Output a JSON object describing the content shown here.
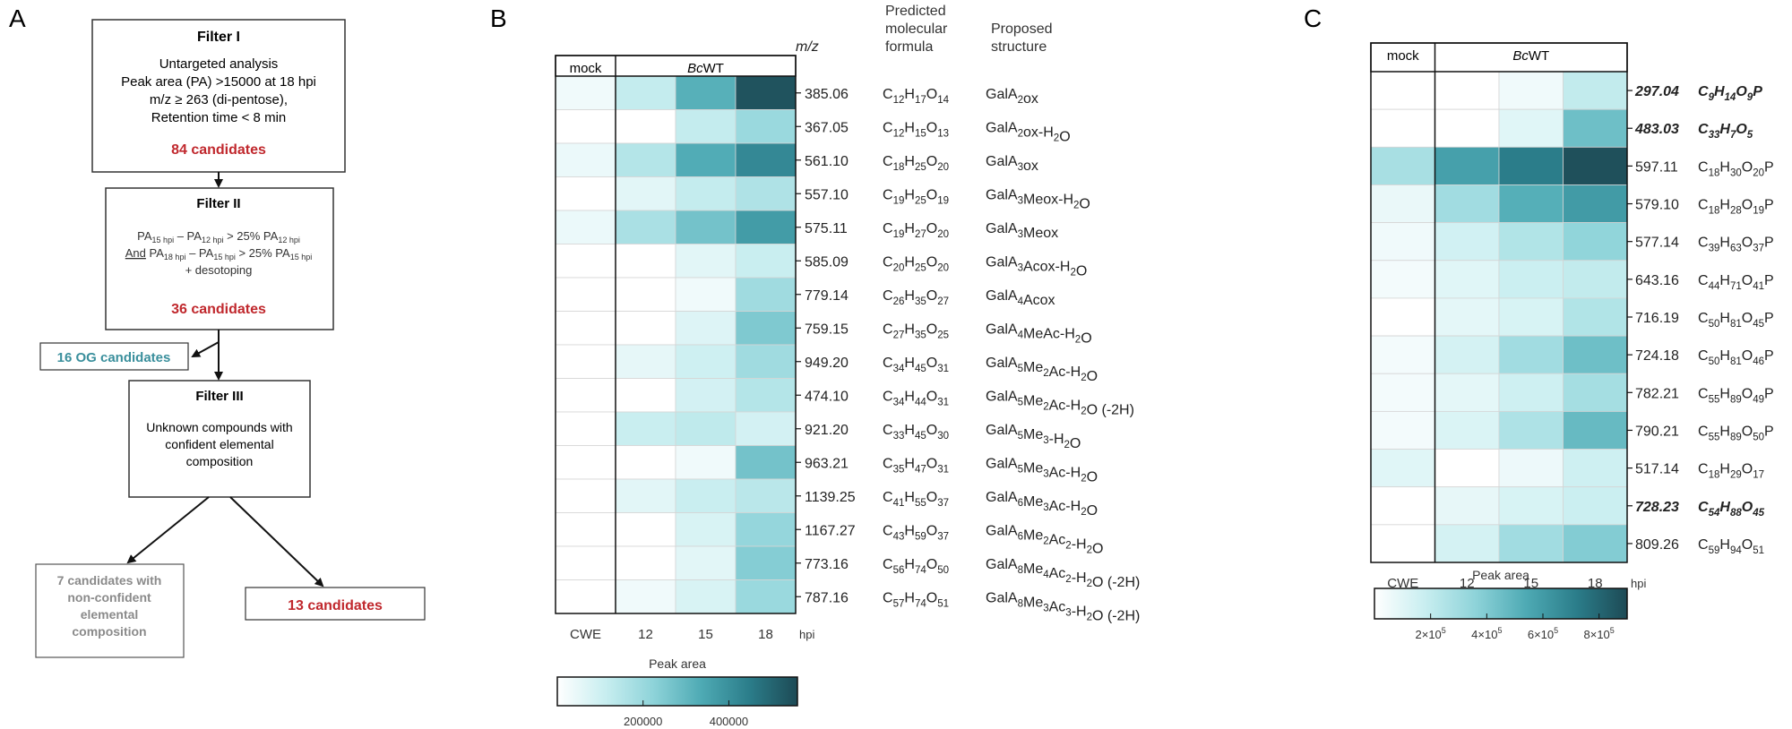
{
  "panels": {
    "a": "A",
    "b": "B",
    "c": "C"
  },
  "flowchart": {
    "filter1": {
      "title": "Filter I",
      "lines": [
        "Untargeted analysis",
        "Peak area (PA) >15000 at 18 hpi",
        "m/z ≥ 263 (di-pentose),",
        "Retention time < 8 min"
      ],
      "result": "84 candidates"
    },
    "filter2": {
      "title": "Filter II",
      "pa": "PA",
      "sub_15": "15 hpi",
      "sub_12": "12 hpi",
      "sub_18": "18 hpi",
      "minus": " – ",
      "gt": " > 25% ",
      "and": "And",
      "desotoping": "+ desotoping",
      "result": "36 candidates"
    },
    "og_box": "16 OG candidates",
    "filter3": {
      "title": "Filter III",
      "lines": [
        "Unknown compounds with",
        "confident elemental",
        "composition"
      ]
    },
    "nonconfident": [
      "7 candidates with",
      "non-confident",
      "elemental",
      "composition"
    ],
    "final_box": "13 candidates"
  },
  "colors": {
    "red": "#c0282d",
    "teal": "#3a8f9c",
    "gray": "#8a8a8a",
    "scale": [
      "#ffffff",
      "#c8eef0",
      "#8ed3d9",
      "#4eaab4",
      "#2b7d8a",
      "#1d4a55"
    ]
  },
  "chart_data": [
    {
      "type": "heatmap",
      "title": "",
      "group_labels": [
        "mock",
        "BcWT"
      ],
      "xlabel_suffix": "hpi",
      "columns": [
        "CWE",
        "12",
        "15",
        "18"
      ],
      "header_mz": "m/z",
      "header_formula": [
        "Predicted",
        "molecular",
        "formula"
      ],
      "header_structure": [
        "Proposed",
        "structure"
      ],
      "colorbar": {
        "title": "Peak area",
        "ticks": [
          200000,
          400000
        ],
        "range": [
          0,
          560000
        ]
      },
      "rows": [
        {
          "mz": "385.06",
          "formula": "C12H17O14",
          "structure": "GalA2ox",
          "values": [
            30000,
            120000,
            320000,
            540000
          ]
        },
        {
          "mz": "367.05",
          "formula": "C12H15O13",
          "structure": "GalA2ox-H2O",
          "values": [
            0,
            0,
            120000,
            200000
          ]
        },
        {
          "mz": "561.10",
          "formula": "C18H25O20",
          "structure": "GalA3ox",
          "values": [
            40000,
            150000,
            330000,
            420000
          ]
        },
        {
          "mz": "557.10",
          "formula": "C19H25O19",
          "structure": "GalA3Meox-H2O",
          "values": [
            0,
            60000,
            120000,
            160000
          ]
        },
        {
          "mz": "575.11",
          "formula": "C19H27O20",
          "structure": "GalA3Meox",
          "values": [
            40000,
            170000,
            270000,
            370000
          ]
        },
        {
          "mz": "585.09",
          "formula": "C20H25O20",
          "structure": "GalA3Acox-H2O",
          "values": [
            0,
            0,
            60000,
            110000
          ]
        },
        {
          "mz": "779.14",
          "formula": "C26H35O27",
          "structure": "GalA4Acox",
          "values": [
            0,
            0,
            30000,
            190000
          ]
        },
        {
          "mz": "759.15",
          "formula": "C27H35O25",
          "structure": "GalA4MeAc-H2O",
          "values": [
            0,
            0,
            70000,
            250000
          ]
        },
        {
          "mz": "949.20",
          "formula": "C34H45O31",
          "structure": "GalA5Me2Ac-H2O",
          "values": [
            0,
            50000,
            100000,
            190000
          ]
        },
        {
          "mz": "474.10",
          "formula": "C34H44O31",
          "structure": "GalA5Me2Ac-H2O (-2H)",
          "values": [
            0,
            0,
            90000,
            150000
          ]
        },
        {
          "mz": "921.20",
          "formula": "C33H45O30",
          "structure": "GalA5Me3-H2O",
          "values": [
            0,
            110000,
            130000,
            90000
          ]
        },
        {
          "mz": "963.21",
          "formula": "C35H47O31",
          "structure": "GalA5Me3Ac-H2O",
          "values": [
            0,
            0,
            30000,
            270000
          ]
        },
        {
          "mz": "1139.25",
          "formula": "C41H55O37",
          "structure": "GalA6Me3Ac-H2O",
          "values": [
            0,
            60000,
            110000,
            140000
          ]
        },
        {
          "mz": "1167.27",
          "formula": "C43H59O37",
          "structure": "GalA6Me2Ac2-H2O",
          "values": [
            0,
            0,
            80000,
            210000
          ]
        },
        {
          "mz": "773.16",
          "formula": "C56H74O50",
          "structure": "GalA8Me4Ac2-H2O (-2H)",
          "values": [
            0,
            0,
            60000,
            240000
          ]
        },
        {
          "mz": "787.16",
          "formula": "C57H74O51",
          "structure": "GalA8Me3Ac3-H2O (-2H)",
          "values": [
            0,
            30000,
            80000,
            200000
          ]
        }
      ]
    },
    {
      "type": "heatmap",
      "title": "",
      "group_labels": [
        "mock",
        "BcWT"
      ],
      "xlabel_suffix": "hpi",
      "columns": [
        "CWE",
        "12",
        "15",
        "18"
      ],
      "colorbar": {
        "title": "Peak area",
        "ticks": [
          200000,
          400000,
          600000,
          800000
        ],
        "tick_labels": [
          "2×10^5",
          "4×10^5",
          "6×10^5",
          "8×10^5"
        ],
        "range": [
          0,
          900000
        ]
      },
      "rows": [
        {
          "mz": "297.04",
          "formula": "C9H14O9P",
          "bold": true,
          "values": [
            0,
            0,
            50000,
            200000
          ]
        },
        {
          "mz": "483.03",
          "formula": "C33H7O5",
          "bold": true,
          "values": [
            0,
            0,
            100000,
            450000
          ]
        },
        {
          "mz": "597.11",
          "formula": "C18H30O20P",
          "bold": false,
          "values": [
            280000,
            580000,
            720000,
            880000
          ]
        },
        {
          "mz": "579.10",
          "formula": "C18H28O19P",
          "bold": false,
          "values": [
            70000,
            300000,
            520000,
            600000
          ]
        },
        {
          "mz": "577.14",
          "formula": "C39H63O37P",
          "bold": false,
          "values": [
            50000,
            150000,
            250000,
            350000
          ]
        },
        {
          "mz": "643.16",
          "formula": "C44H71O41P",
          "bold": false,
          "values": [
            40000,
            100000,
            170000,
            200000
          ]
        },
        {
          "mz": "716.19",
          "formula": "C50H81O45P",
          "bold": false,
          "values": [
            0,
            90000,
            130000,
            250000
          ]
        },
        {
          "mz": "724.18",
          "formula": "C50H81O46P",
          "bold": false,
          "values": [
            40000,
            140000,
            300000,
            450000
          ]
        },
        {
          "mz": "782.21",
          "formula": "C55H89O49P",
          "bold": false,
          "values": [
            40000,
            90000,
            160000,
            290000
          ]
        },
        {
          "mz": "790.21",
          "formula": "C55H89O50P",
          "bold": false,
          "values": [
            40000,
            120000,
            260000,
            470000
          ]
        },
        {
          "mz": "517.14",
          "formula": "C18H29O17",
          "bold": false,
          "values": [
            100000,
            0,
            60000,
            160000
          ]
        },
        {
          "mz": "728.23",
          "formula": "C54H88O45",
          "bold": true,
          "values": [
            0,
            80000,
            130000,
            170000
          ]
        },
        {
          "mz": "809.26",
          "formula": "C59H94O51",
          "bold": false,
          "values": [
            0,
            140000,
            300000,
            390000
          ]
        }
      ]
    }
  ]
}
